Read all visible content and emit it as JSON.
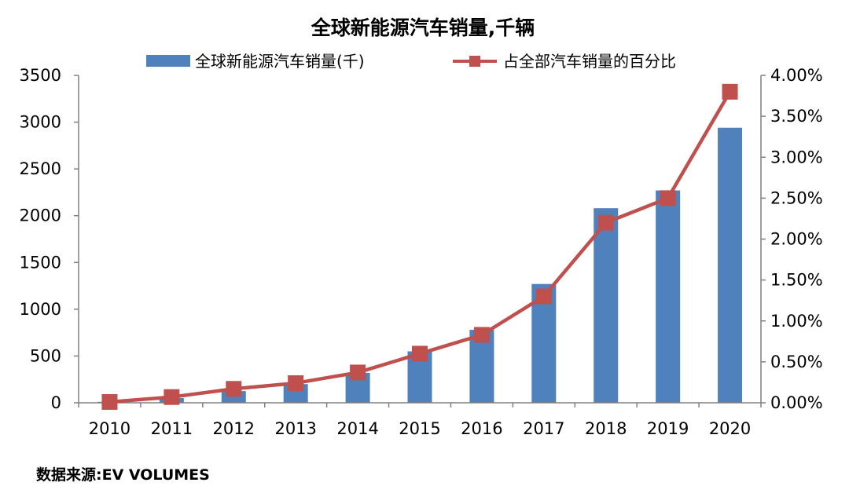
{
  "chart_data": {
    "type": "bar",
    "title": "全球新能源汽车销量,千辆",
    "categories": [
      "2010",
      "2011",
      "2012",
      "2013",
      "2014",
      "2015",
      "2016",
      "2017",
      "2018",
      "2019",
      "2020"
    ],
    "series": [
      {
        "name": "全球新能源汽车销量(千)",
        "type": "bar",
        "axis": "left",
        "color": "#4F81BD",
        "values": [
          10,
          50,
          125,
          200,
          320,
          550,
          780,
          1270,
          2080,
          2270,
          2940
        ]
      },
      {
        "name": "占全部汽车销量的百分比",
        "type": "line",
        "axis": "right",
        "color": "#C0504D",
        "values": [
          0.0001,
          0.0007,
          0.0017,
          0.0024,
          0.0037,
          0.006,
          0.0083,
          0.013,
          0.022,
          0.025,
          0.038
        ]
      }
    ],
    "y_left": {
      "ylim": [
        0,
        3500
      ],
      "ticks": [
        0,
        500,
        1000,
        1500,
        2000,
        2500,
        3000,
        3500
      ],
      "tick_labels": [
        "0",
        "500",
        "1000",
        "1500",
        "2000",
        "2500",
        "3000",
        "3500"
      ]
    },
    "y_right": {
      "ylim": [
        0,
        0.04
      ],
      "ticks": [
        0,
        0.005,
        0.01,
        0.015,
        0.02,
        0.025,
        0.03,
        0.035,
        0.04
      ],
      "tick_labels": [
        "0.00%",
        "0.50%",
        "1.00%",
        "1.50%",
        "2.00%",
        "2.50%",
        "3.00%",
        "3.50%",
        "4.00%"
      ]
    },
    "legend_position": "top",
    "grid": false
  },
  "source_text": "数据来源:EV VOLUMES"
}
